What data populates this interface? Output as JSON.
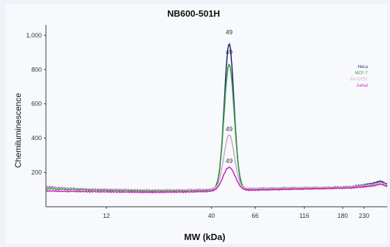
{
  "chart_data": {
    "type": "line",
    "title": "NB600-501H",
    "xlabel": "MW (kDa)",
    "ylabel": "Chemiluminescence",
    "x_ticks": [
      "12",
      "40",
      "66",
      "116",
      "180",
      "230"
    ],
    "x_tick_values": [
      12,
      40,
      66,
      116,
      180,
      230
    ],
    "xlim": [
      6,
      300
    ],
    "x_scale": "log",
    "y_ticks": [
      "200",
      "400",
      "600",
      "800",
      "1,000"
    ],
    "y_tick_values": [
      200,
      400,
      600,
      800,
      1000
    ],
    "ylim": [
      0,
      1060
    ],
    "grid": false,
    "legend_position": "right",
    "peak_mw": 49,
    "peak_labels": [
      {
        "text": "49",
        "x": 49,
        "y": 1005
      },
      {
        "text": "49",
        "x": 49,
        "y": 890
      },
      {
        "text": "49",
        "x": 49,
        "y": 440
      },
      {
        "text": "49",
        "x": 49,
        "y": 255
      }
    ],
    "series": [
      {
        "name": "HeLa",
        "color": "#1e2a78",
        "peak": 950,
        "width": 0.055,
        "baseline": [
          [
            6,
            115
          ],
          [
            10,
            100
          ],
          [
            20,
            95
          ],
          [
            30,
            97
          ],
          [
            40,
            100
          ],
          [
            60,
            105
          ],
          [
            100,
            110
          ],
          [
            150,
            112
          ],
          [
            200,
            118
          ],
          [
            250,
            135
          ],
          [
            280,
            150
          ],
          [
            300,
            130
          ]
        ]
      },
      {
        "name": "MCF-7",
        "color": "#3a9a3a",
        "peak": 830,
        "width": 0.058,
        "baseline": [
          [
            6,
            105
          ],
          [
            10,
            98
          ],
          [
            20,
            92
          ],
          [
            30,
            94
          ],
          [
            40,
            98
          ],
          [
            60,
            103
          ],
          [
            100,
            108
          ],
          [
            150,
            110
          ],
          [
            200,
            115
          ],
          [
            250,
            128
          ],
          [
            280,
            142
          ],
          [
            300,
            125
          ]
        ]
      },
      {
        "name": "SH-SY5Y",
        "color": "#d0a8c8",
        "peak": 420,
        "width": 0.06,
        "baseline": [
          [
            6,
            112
          ],
          [
            10,
            104
          ],
          [
            20,
            98
          ],
          [
            30,
            99
          ],
          [
            40,
            102
          ],
          [
            60,
            106
          ],
          [
            100,
            110
          ],
          [
            150,
            113
          ],
          [
            200,
            117
          ],
          [
            250,
            130
          ],
          [
            280,
            140
          ],
          [
            300,
            128
          ]
        ]
      },
      {
        "name": "Jurkat",
        "color": "#d020c0",
        "peak": 230,
        "width": 0.07,
        "baseline": [
          [
            6,
            92
          ],
          [
            10,
            88
          ],
          [
            20,
            84
          ],
          [
            30,
            86
          ],
          [
            40,
            90
          ],
          [
            60,
            96
          ],
          [
            100,
            102
          ],
          [
            150,
            106
          ],
          [
            200,
            110
          ],
          [
            250,
            120
          ],
          [
            280,
            132
          ],
          [
            300,
            118
          ]
        ]
      }
    ]
  }
}
